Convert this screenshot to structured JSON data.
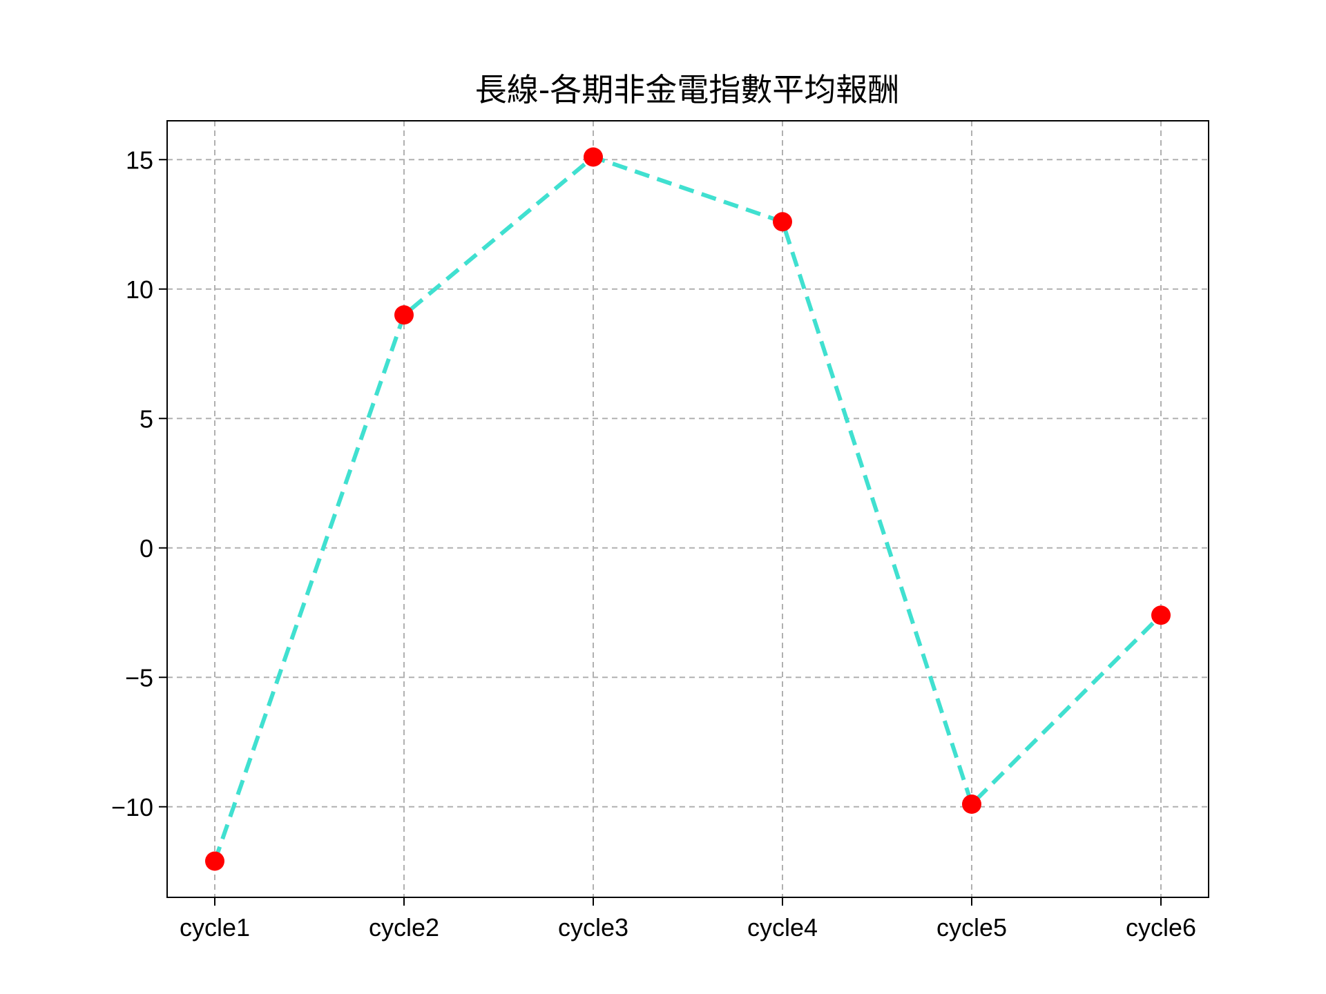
{
  "chart_data": {
    "type": "line",
    "title": "長線-各期非金電指數平均報酬",
    "xlabel": "",
    "ylabel": "",
    "categories": [
      "cycle1",
      "cycle2",
      "cycle3",
      "cycle4",
      "cycle5",
      "cycle6"
    ],
    "series": [
      {
        "values": [
          -12.1,
          9.0,
          15.1,
          12.6,
          -9.9,
          -2.6
        ],
        "line_color": "#40e0d0",
        "line_style": "dashed",
        "marker_color": "#ff0000",
        "marker": "circle"
      }
    ],
    "ylim": [
      -13.5,
      16.5
    ],
    "yticks": [
      15,
      10,
      5,
      0,
      -5,
      -10
    ],
    "ytick_labels": [
      "15",
      "10",
      "5",
      "0",
      "−5",
      "−10"
    ],
    "grid": true
  }
}
